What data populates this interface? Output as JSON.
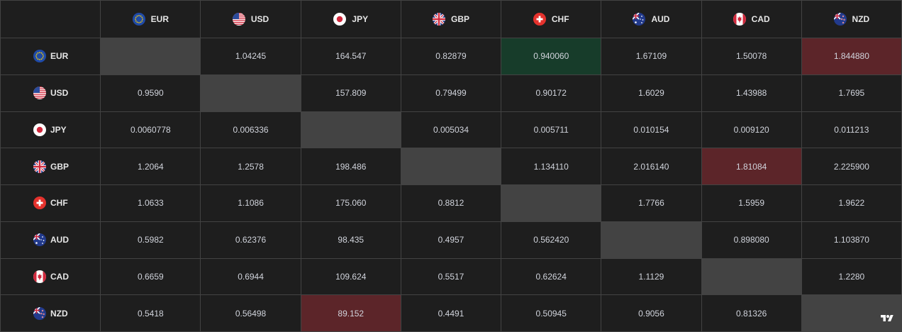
{
  "currencies": [
    "EUR",
    "USD",
    "JPY",
    "GBP",
    "CHF",
    "AUD",
    "CAD",
    "NZD"
  ],
  "flag_icons": [
    "eu-flag-icon",
    "us-flag-icon",
    "jp-flag-icon",
    "gb-flag-icon",
    "ch-flag-icon",
    "au-flag-icon",
    "ca-flag-icon",
    "nz-flag-icon"
  ],
  "rows": [
    [
      "",
      "1.04245",
      "164.547",
      "0.82879",
      "0.940060",
      "1.67109",
      "1.50078",
      "1.844880"
    ],
    [
      "0.9590",
      "",
      "157.809",
      "0.79499",
      "0.90172",
      "1.6029",
      "1.43988",
      "1.7695"
    ],
    [
      "0.0060778",
      "0.006336",
      "",
      "0.005034",
      "0.005711",
      "0.010154",
      "0.009120",
      "0.011213"
    ],
    [
      "1.2064",
      "1.2578",
      "198.486",
      "",
      "1.134110",
      "2.016140",
      "1.81084",
      "2.225900"
    ],
    [
      "1.0633",
      "1.1086",
      "175.060",
      "0.8812",
      "",
      "1.7766",
      "1.5959",
      "1.9622"
    ],
    [
      "0.5982",
      "0.62376",
      "98.435",
      "0.4957",
      "0.562420",
      "",
      "0.898080",
      "1.103870"
    ],
    [
      "0.6659",
      "0.6944",
      "109.624",
      "0.5517",
      "0.62624",
      "1.1129",
      "",
      "1.2280"
    ],
    [
      "0.5418",
      "0.56498",
      "89.152",
      "0.4491",
      "0.50945",
      "0.9056",
      "0.81326",
      ""
    ]
  ],
  "highlights": {
    "green": [
      [
        0,
        4
      ]
    ],
    "red": [
      [
        0,
        7
      ],
      [
        3,
        6
      ],
      [
        7,
        2
      ]
    ]
  },
  "colors": {
    "background": "#1e1e1e",
    "gridline": "#434343",
    "diagonal": "#434343",
    "positive": "#173c2a",
    "negative": "#5c2529",
    "text": "#d1d4dc"
  },
  "logo_icon": "tradingview-logo-icon"
}
